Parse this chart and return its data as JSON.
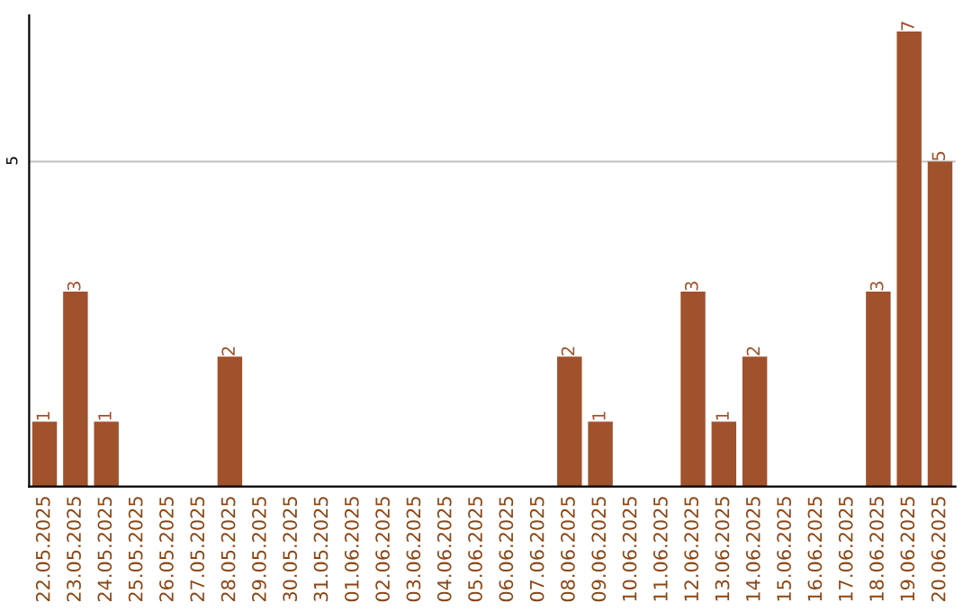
{
  "chart_data": {
    "type": "bar",
    "categories": [
      "22.05.2025",
      "23.05.2025",
      "24.05.2025",
      "25.05.2025",
      "26.05.2025",
      "27.05.2025",
      "28.05.2025",
      "29.05.2025",
      "30.05.2025",
      "31.05.2025",
      "01.06.2025",
      "02.06.2025",
      "03.06.2025",
      "04.06.2025",
      "05.06.2025",
      "06.06.2025",
      "07.06.2025",
      "08.06.2025",
      "09.06.2025",
      "10.06.2025",
      "11.06.2025",
      "12.06.2025",
      "13.06.2025",
      "14.06.2025",
      "15.06.2025",
      "16.06.2025",
      "17.06.2025",
      "18.06.2025",
      "19.06.2025",
      "20.06.2025"
    ],
    "values": [
      1,
      3,
      1,
      0,
      0,
      0,
      2,
      0,
      0,
      0,
      0,
      0,
      0,
      0,
      0,
      0,
      0,
      2,
      1,
      0,
      0,
      3,
      1,
      2,
      0,
      0,
      0,
      3,
      7,
      5
    ],
    "value_labels": [
      "1",
      "3",
      "1",
      null,
      null,
      null,
      "2",
      null,
      null,
      null,
      null,
      null,
      null,
      null,
      null,
      null,
      null,
      "2",
      "1",
      null,
      null,
      "3",
      "1",
      "2",
      null,
      null,
      null,
      "3",
      "7",
      "5"
    ],
    "color": "#a0522d",
    "ylim": [
      0,
      7.25
    ],
    "yticks": [
      5
    ],
    "grid": "y"
  }
}
